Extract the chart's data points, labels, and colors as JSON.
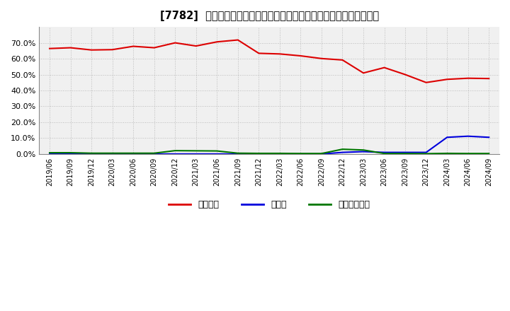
{
  "title": "[7782]  自己資本、のれん、繰延税金資産の総資産に対する比率の推移",
  "dates": [
    "2019/06",
    "2019/09",
    "2019/12",
    "2020/03",
    "2020/06",
    "2020/09",
    "2020/12",
    "2021/03",
    "2021/06",
    "2021/09",
    "2021/12",
    "2022/03",
    "2022/06",
    "2022/09",
    "2022/12",
    "2023/03",
    "2023/06",
    "2023/09",
    "2023/12",
    "2024/03",
    "2024/06",
    "2024/09"
  ],
  "equity": [
    0.664,
    0.669,
    0.655,
    0.657,
    0.678,
    0.669,
    0.7,
    0.68,
    0.706,
    0.718,
    0.634,
    0.63,
    0.618,
    0.601,
    0.592,
    0.51,
    0.544,
    0.5,
    0.45,
    0.47,
    0.477,
    0.475
  ],
  "goodwill": [
    0.0,
    0.0,
    0.0,
    0.0,
    0.0,
    0.0,
    0.0,
    0.0,
    0.0,
    0.0,
    0.0,
    0.0,
    0.0,
    0.0,
    0.01,
    0.015,
    0.01,
    0.01,
    0.01,
    0.105,
    0.112,
    0.105
  ],
  "deferred_tax": [
    0.008,
    0.008,
    0.005,
    0.005,
    0.005,
    0.005,
    0.021,
    0.02,
    0.019,
    0.005,
    0.004,
    0.004,
    0.003,
    0.003,
    0.03,
    0.025,
    0.003,
    0.003,
    0.002,
    0.004,
    0.003,
    0.003
  ],
  "equity_color": "#dd0000",
  "goodwill_color": "#0000dd",
  "deferred_tax_color": "#007700",
  "background_color": "#ffffff",
  "plot_bg_color": "#f0f0f0",
  "grid_color": "#bbbbbb",
  "ylim": [
    0.0,
    0.8
  ],
  "yticks": [
    0.0,
    0.1,
    0.2,
    0.3,
    0.4,
    0.5,
    0.6,
    0.7
  ],
  "legend_labels": [
    "自己資本",
    "のれん",
    "繰延税金資産"
  ]
}
